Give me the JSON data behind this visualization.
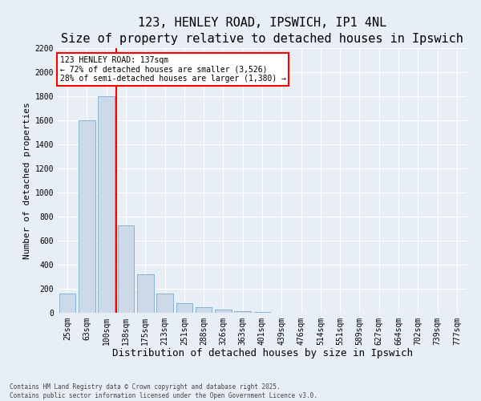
{
  "title1": "123, HENLEY ROAD, IPSWICH, IP1 4NL",
  "title2": "Size of property relative to detached houses in Ipswich",
  "xlabel": "Distribution of detached houses by size in Ipswich",
  "ylabel": "Number of detached properties",
  "categories": [
    "25sqm",
    "63sqm",
    "100sqm",
    "138sqm",
    "175sqm",
    "213sqm",
    "251sqm",
    "288sqm",
    "326sqm",
    "363sqm",
    "401sqm",
    "439sqm",
    "476sqm",
    "514sqm",
    "551sqm",
    "589sqm",
    "627sqm",
    "664sqm",
    "702sqm",
    "739sqm",
    "777sqm"
  ],
  "values": [
    160,
    1600,
    1800,
    725,
    320,
    160,
    80,
    50,
    25,
    15,
    5,
    0,
    0,
    0,
    0,
    0,
    0,
    0,
    0,
    0,
    0
  ],
  "bar_color": "#ccd9e8",
  "bar_edge_color": "#7aabcf",
  "vline_color": "red",
  "annotation_text": "123 HENLEY ROAD: 137sqm\n← 72% of detached houses are smaller (3,526)\n28% of semi-detached houses are larger (1,380) →",
  "annotation_box_color": "red",
  "ylim": [
    0,
    2200
  ],
  "yticks": [
    0,
    200,
    400,
    600,
    800,
    1000,
    1200,
    1400,
    1600,
    1800,
    2000,
    2200
  ],
  "background_color": "#e8eef5",
  "plot_background_color": "#e8eef5",
  "footer1": "Contains HM Land Registry data © Crown copyright and database right 2025.",
  "footer2": "Contains public sector information licensed under the Open Government Licence v3.0.",
  "title_fontsize": 11,
  "subtitle_fontsize": 10,
  "tick_fontsize": 7,
  "xlabel_fontsize": 9,
  "ylabel_fontsize": 8,
  "annotation_fontsize": 7,
  "footer_fontsize": 5.5
}
